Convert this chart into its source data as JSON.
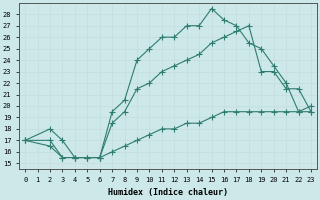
{
  "xlabel": "Humidex (Indice chaleur)",
  "bg_color": "#cce8e8",
  "grid_color": "#c8dede",
  "line_color": "#2e7d6e",
  "xlim": [
    -0.5,
    23.5
  ],
  "ylim": [
    14.5,
    29.0
  ],
  "xticks": [
    0,
    1,
    2,
    3,
    4,
    5,
    6,
    7,
    8,
    9,
    10,
    11,
    12,
    13,
    14,
    15,
    16,
    17,
    18,
    19,
    20,
    21,
    22,
    23
  ],
  "yticks": [
    15,
    16,
    17,
    18,
    19,
    20,
    21,
    22,
    23,
    24,
    25,
    26,
    27,
    28
  ],
  "line1_x": [
    0,
    2,
    3,
    4,
    5,
    6,
    7,
    8,
    9,
    10,
    11,
    12,
    13,
    14,
    15,
    16,
    17,
    18,
    19,
    20,
    21,
    22,
    23
  ],
  "line1_y": [
    17,
    18,
    17,
    15.5,
    15.5,
    15.5,
    19.5,
    20.5,
    24,
    25,
    26,
    26,
    27,
    27,
    28.5,
    27.5,
    27,
    25.5,
    25,
    23.5,
    22,
    19.5,
    20
  ],
  "line2_x": [
    0,
    2,
    3,
    4,
    5,
    6,
    7,
    8,
    9,
    10,
    11,
    12,
    13,
    14,
    15,
    16,
    17,
    18,
    19,
    20,
    21,
    22,
    23
  ],
  "line2_y": [
    17,
    17,
    15.5,
    15.5,
    15.5,
    15.5,
    18.5,
    19.5,
    21.5,
    22,
    23,
    23.5,
    24,
    24.5,
    25.5,
    26,
    26.5,
    27,
    23,
    23,
    21.5,
    21.5,
    19.5
  ],
  "line3_x": [
    0,
    2,
    3,
    4,
    5,
    6,
    7,
    8,
    9,
    10,
    11,
    12,
    13,
    14,
    15,
    16,
    17,
    18,
    19,
    20,
    21,
    22,
    23
  ],
  "line3_y": [
    17,
    16.5,
    15.5,
    15.5,
    15.5,
    15.5,
    16,
    16.5,
    17,
    17.5,
    18,
    18,
    18.5,
    18.5,
    19,
    19.5,
    19.5,
    19.5,
    19.5,
    19.5,
    19.5,
    19.5,
    19.5
  ]
}
